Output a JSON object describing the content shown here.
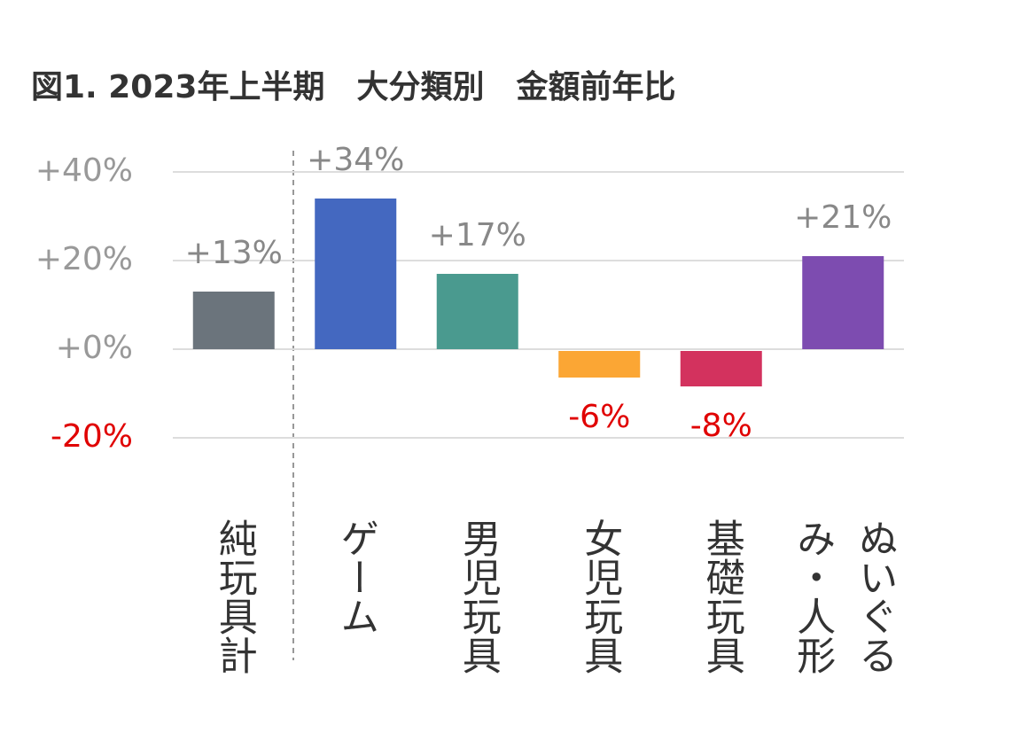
{
  "chart_data": {
    "type": "bar",
    "title": "図1. 2023年上半期　大分類別　金額前年比",
    "categories": [
      "純玩具計",
      "ゲーム",
      "男児玩具",
      "女児玩具",
      "基礎玩具",
      "ぬいぐるみ・人形"
    ],
    "values": [
      13,
      34,
      17,
      -6,
      -8,
      21
    ],
    "value_labels": [
      "+13%",
      "+34%",
      "+17%",
      "-6%",
      "-8%",
      "+21%"
    ],
    "colors": [
      "#6b747c",
      "#4468c0",
      "#4a9a8f",
      "#fba634",
      "#d3325e",
      "#7d4cb0"
    ],
    "ylim": [
      -20,
      40
    ],
    "yticks": [
      {
        "value": -20,
        "label": "-20%"
      },
      {
        "value": 0,
        "label": "+0%"
      },
      {
        "value": 20,
        "label": "+20%"
      },
      {
        "value": 40,
        "label": "+40%"
      }
    ],
    "grid": true
  }
}
